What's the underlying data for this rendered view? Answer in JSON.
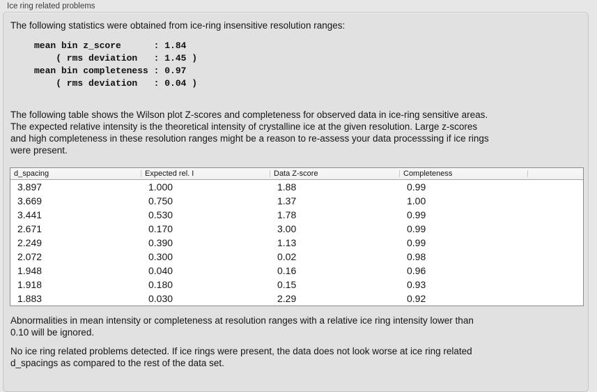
{
  "panel": {
    "title": "Ice ring related problems"
  },
  "sections": {
    "intro": "The following statistics were obtained from ice-ring insensitive resolution ranges:",
    "stats_block": "mean bin z_score      : 1.84\n    ( rms deviation   : 1.45 )\nmean bin completeness : 0.97\n    ( rms deviation   : 0.04 )",
    "table_description": "The following table shows the Wilson plot Z-scores and completeness for observed data in ice-ring sensitive areas.\nThe expected relative intensity is the theoretical intensity of crystalline ice at the given resolution. Large z-scores\nand high completeness in these resolution ranges might be a reason to re-assess your data processsing if ice rings\nwere present.",
    "ignore_note": "Abnormalities in mean intensity or completeness at resolution ranges with a relative ice ring intensity lower than\n0.10 will be ignored.",
    "conclusion": "No ice ring related problems detected. If ice rings were present, the data does not look worse at ice ring related\nd_spacings as compared to the rest of the data set."
  },
  "stats": {
    "mean_bin_z_score": "1.84",
    "z_score_rms_deviation": "1.45",
    "mean_bin_completeness": "0.97",
    "completeness_rms_deviation": "0.04"
  },
  "table": {
    "columns": [
      "d_spacing",
      "Expected rel. I",
      "Data Z-score",
      "Completeness"
    ],
    "rows": [
      [
        "3.897",
        "1.000",
        "1.88",
        "0.99"
      ],
      [
        "3.669",
        "0.750",
        "1.37",
        "1.00"
      ],
      [
        "3.441",
        "0.530",
        "1.78",
        "0.99"
      ],
      [
        "2.671",
        "0.170",
        "3.00",
        "0.99"
      ],
      [
        "2.249",
        "0.390",
        "1.13",
        "0.99"
      ],
      [
        "2.072",
        "0.300",
        "0.02",
        "0.98"
      ],
      [
        "1.948",
        "0.040",
        "0.16",
        "0.96"
      ],
      [
        "1.918",
        "0.180",
        "0.15",
        "0.93"
      ],
      [
        "1.883",
        "0.030",
        "2.29",
        "0.92"
      ]
    ]
  },
  "colors": {
    "page_background": "#e7e7e7",
    "groupbox_fill": "#e1e1e1",
    "groupbox_border": "#c6c6c6",
    "table_border": "#8b8b8b",
    "table_header_fill": "#f5f5f5",
    "text": "#151515"
  }
}
